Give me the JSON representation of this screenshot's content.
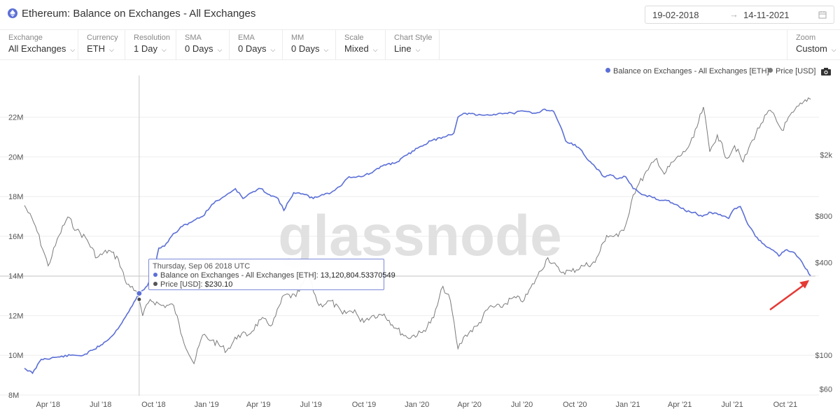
{
  "header": {
    "title": "Ethereum: Balance on Exchanges - All Exchanges",
    "date_from": "19-02-2018",
    "date_separator": "→",
    "date_to": "14-11-2021"
  },
  "controls": [
    {
      "label": "Exchange",
      "value": "All Exchanges"
    },
    {
      "label": "Currency",
      "value": "ETH"
    },
    {
      "label": "Resolution",
      "value": "1 Day"
    },
    {
      "label": "SMA",
      "value": "0 Days"
    },
    {
      "label": "EMA",
      "value": "0 Days"
    },
    {
      "label": "MM",
      "value": "0 Days"
    },
    {
      "label": "Scale",
      "value": "Mixed"
    },
    {
      "label": "Chart Style",
      "value": "Line"
    },
    {
      "label": "Zoom",
      "value": "Custom"
    }
  ],
  "legend": {
    "balance": "Balance on Exchanges - All Exchanges [ETH]",
    "price": "Price [USD]"
  },
  "tooltip": {
    "date": "Thursday, Sep 06 2018 UTC",
    "balance_label": "Balance on Exchanges - All Exchanges [ETH]:",
    "balance_value": "13,120,804.53370549",
    "price_label": "Price [USD]:",
    "price_value": "$230.10"
  },
  "watermark": "glassnode",
  "colors": {
    "balance": "#5b6fd6",
    "price": "#7a7a7a",
    "annotation_arrow": "#e53935",
    "grid": "#eeeeee"
  },
  "chart_data": {
    "type": "line",
    "title": "Ethereum: Balance on Exchanges - All Exchanges",
    "x_ticks": [
      "Apr '18",
      "Jul '18",
      "Oct '18",
      "Jan '19",
      "Apr '19",
      "Jul '19",
      "Oct '19",
      "Jan '20",
      "Apr '20",
      "Jul '20",
      "Oct '20",
      "Jan '21",
      "Apr '21",
      "Jul '21",
      "Oct '21"
    ],
    "y_left_ticks": [
      "8M",
      "10M",
      "12M",
      "14M",
      "16M",
      "18M",
      "20M",
      "22M"
    ],
    "y_left_range": [
      8000000,
      23500000
    ],
    "y_right_ticks": [
      "$60",
      "$100",
      "$400",
      "$800",
      "$2k"
    ],
    "y_right_scale": "log",
    "y_right_range": [
      55,
      5500
    ],
    "grid": true,
    "legend_position": "top-right",
    "series": [
      {
        "name": "Balance on Exchanges - All Exchanges [ETH]",
        "axis": "left",
        "points": [
          [
            "2018-02-19",
            9350000
          ],
          [
            "2018-03-05",
            9100000
          ],
          [
            "2018-03-20",
            9800000
          ],
          [
            "2018-04-15",
            9900000
          ],
          [
            "2018-05-10",
            10000000
          ],
          [
            "2018-06-01",
            10000000
          ],
          [
            "2018-06-20",
            10300000
          ],
          [
            "2018-07-10",
            10700000
          ],
          [
            "2018-07-25",
            11100000
          ],
          [
            "2018-08-10",
            11800000
          ],
          [
            "2018-08-25",
            12500000
          ],
          [
            "2018-09-06",
            13120000
          ],
          [
            "2018-09-20",
            13500000
          ],
          [
            "2018-10-01",
            14100000
          ],
          [
            "2018-10-10",
            15400000
          ],
          [
            "2018-10-20",
            15500000
          ],
          [
            "2018-11-01",
            16000000
          ],
          [
            "2018-11-20",
            16500000
          ],
          [
            "2018-12-10",
            16800000
          ],
          [
            "2018-12-25",
            17000000
          ],
          [
            "2019-01-10",
            17600000
          ],
          [
            "2019-01-20",
            17800000
          ],
          [
            "2019-02-05",
            18100000
          ],
          [
            "2019-02-20",
            18400000
          ],
          [
            "2019-03-05",
            17900000
          ],
          [
            "2019-03-20",
            18200000
          ],
          [
            "2019-04-05",
            18400000
          ],
          [
            "2019-04-20",
            18100000
          ],
          [
            "2019-05-05",
            17900000
          ],
          [
            "2019-05-15",
            17300000
          ],
          [
            "2019-06-01",
            18200000
          ],
          [
            "2019-06-20",
            18100000
          ],
          [
            "2019-07-05",
            17900000
          ],
          [
            "2019-07-20",
            18100000
          ],
          [
            "2019-08-05",
            18200000
          ],
          [
            "2019-08-20",
            18500000
          ],
          [
            "2019-09-05",
            19000000
          ],
          [
            "2019-09-25",
            19000000
          ],
          [
            "2019-10-15",
            19200000
          ],
          [
            "2019-11-05",
            19600000
          ],
          [
            "2019-11-25",
            19700000
          ],
          [
            "2019-12-15",
            20100000
          ],
          [
            "2020-01-05",
            20500000
          ],
          [
            "2020-01-25",
            20800000
          ],
          [
            "2020-02-15",
            21000000
          ],
          [
            "2020-03-05",
            21200000
          ],
          [
            "2020-03-12",
            22000000
          ],
          [
            "2020-03-25",
            22200000
          ],
          [
            "2020-04-15",
            22100000
          ],
          [
            "2020-05-05",
            22100000
          ],
          [
            "2020-05-25",
            22200000
          ],
          [
            "2020-06-15",
            22200000
          ],
          [
            "2020-07-05",
            22300000
          ],
          [
            "2020-07-25",
            22200000
          ],
          [
            "2020-08-10",
            22400000
          ],
          [
            "2020-08-25",
            22300000
          ],
          [
            "2020-09-05",
            21600000
          ],
          [
            "2020-09-15",
            20800000
          ],
          [
            "2020-09-25",
            20700000
          ],
          [
            "2020-10-10",
            20400000
          ],
          [
            "2020-10-25",
            19800000
          ],
          [
            "2020-11-05",
            19500000
          ],
          [
            "2020-11-20",
            19000000
          ],
          [
            "2020-12-01",
            19100000
          ],
          [
            "2020-12-15",
            18900000
          ],
          [
            "2020-12-28",
            19000000
          ],
          [
            "2021-01-10",
            18400000
          ],
          [
            "2021-01-25",
            18100000
          ],
          [
            "2021-02-10",
            18000000
          ],
          [
            "2021-02-25",
            17800000
          ],
          [
            "2021-03-10",
            17800000
          ],
          [
            "2021-03-25",
            17600000
          ],
          [
            "2021-04-10",
            17300000
          ],
          [
            "2021-04-25",
            17200000
          ],
          [
            "2021-05-10",
            17000000
          ],
          [
            "2021-05-25",
            17200000
          ],
          [
            "2021-06-10",
            17100000
          ],
          [
            "2021-06-25",
            16900000
          ],
          [
            "2021-07-05",
            17400000
          ],
          [
            "2021-07-15",
            17500000
          ],
          [
            "2021-07-25",
            16800000
          ],
          [
            "2021-08-10",
            16000000
          ],
          [
            "2021-08-25",
            15600000
          ],
          [
            "2021-09-10",
            15300000
          ],
          [
            "2021-09-20",
            15000000
          ],
          [
            "2021-10-01",
            15300000
          ],
          [
            "2021-10-15",
            15200000
          ],
          [
            "2021-10-30",
            14700000
          ],
          [
            "2021-11-14",
            14000000
          ]
        ]
      },
      {
        "name": "Price [USD]",
        "axis": "right",
        "points": [
          [
            "2018-02-19",
            940
          ],
          [
            "2018-03-10",
            690
          ],
          [
            "2018-04-01",
            380
          ],
          [
            "2018-04-20",
            600
          ],
          [
            "2018-05-05",
            790
          ],
          [
            "2018-05-20",
            650
          ],
          [
            "2018-06-05",
            580
          ],
          [
            "2018-06-25",
            430
          ],
          [
            "2018-07-15",
            480
          ],
          [
            "2018-08-01",
            420
          ],
          [
            "2018-08-15",
            290
          ],
          [
            "2018-08-25",
            280
          ],
          [
            "2018-09-06",
            230
          ],
          [
            "2018-09-12",
            180
          ],
          [
            "2018-09-25",
            230
          ],
          [
            "2018-10-15",
            210
          ],
          [
            "2018-11-05",
            210
          ],
          [
            "2018-11-20",
            130
          ],
          [
            "2018-12-10",
            88
          ],
          [
            "2018-12-25",
            135
          ],
          [
            "2019-01-10",
            125
          ],
          [
            "2019-02-05",
            107
          ],
          [
            "2019-02-25",
            135
          ],
          [
            "2019-03-15",
            136
          ],
          [
            "2019-04-05",
            170
          ],
          [
            "2019-04-25",
            158
          ],
          [
            "2019-05-15",
            245
          ],
          [
            "2019-06-05",
            240
          ],
          [
            "2019-06-26",
            330
          ],
          [
            "2019-07-15",
            210
          ],
          [
            "2019-08-05",
            225
          ],
          [
            "2019-08-25",
            185
          ],
          [
            "2019-09-15",
            197
          ],
          [
            "2019-09-25",
            165
          ],
          [
            "2019-10-15",
            180
          ],
          [
            "2019-11-05",
            185
          ],
          [
            "2019-11-25",
            150
          ],
          [
            "2019-12-15",
            130
          ],
          [
            "2020-01-10",
            140
          ],
          [
            "2020-01-30",
            175
          ],
          [
            "2020-02-15",
            280
          ],
          [
            "2020-02-28",
            225
          ],
          [
            "2020-03-12",
            110
          ],
          [
            "2020-03-25",
            135
          ],
          [
            "2020-04-15",
            155
          ],
          [
            "2020-05-05",
            205
          ],
          [
            "2020-05-25",
            205
          ],
          [
            "2020-06-15",
            235
          ],
          [
            "2020-07-05",
            228
          ],
          [
            "2020-07-25",
            310
          ],
          [
            "2020-08-15",
            430
          ],
          [
            "2020-09-05",
            350
          ],
          [
            "2020-09-25",
            350
          ],
          [
            "2020-10-15",
            380
          ],
          [
            "2020-11-05",
            400
          ],
          [
            "2020-11-25",
            600
          ],
          [
            "2020-12-15",
            590
          ],
          [
            "2020-12-28",
            700
          ],
          [
            "2021-01-10",
            1100
          ],
          [
            "2021-01-20",
            1300
          ],
          [
            "2021-02-05",
            1600
          ],
          [
            "2021-02-20",
            1900
          ],
          [
            "2021-03-05",
            1500
          ],
          [
            "2021-03-20",
            1800
          ],
          [
            "2021-04-10",
            2100
          ],
          [
            "2021-04-25",
            2600
          ],
          [
            "2021-05-12",
            4100
          ],
          [
            "2021-05-23",
            2100
          ],
          [
            "2021-06-05",
            2700
          ],
          [
            "2021-06-22",
            1900
          ],
          [
            "2021-07-05",
            2300
          ],
          [
            "2021-07-20",
            1800
          ],
          [
            "2021-08-05",
            2500
          ],
          [
            "2021-08-20",
            3200
          ],
          [
            "2021-09-05",
            3900
          ],
          [
            "2021-09-25",
            2900
          ],
          [
            "2021-10-15",
            3800
          ],
          [
            "2021-10-30",
            4300
          ],
          [
            "2021-11-10",
            4700
          ],
          [
            "2021-11-14",
            4600
          ]
        ]
      }
    ],
    "annotations": [
      {
        "type": "hover",
        "date": "2018-09-06",
        "balance": 13120804.53370549,
        "price": 230.1
      },
      {
        "type": "arrow",
        "points_to_date": "2021-11-14",
        "points_to_value": 14000000
      }
    ]
  }
}
